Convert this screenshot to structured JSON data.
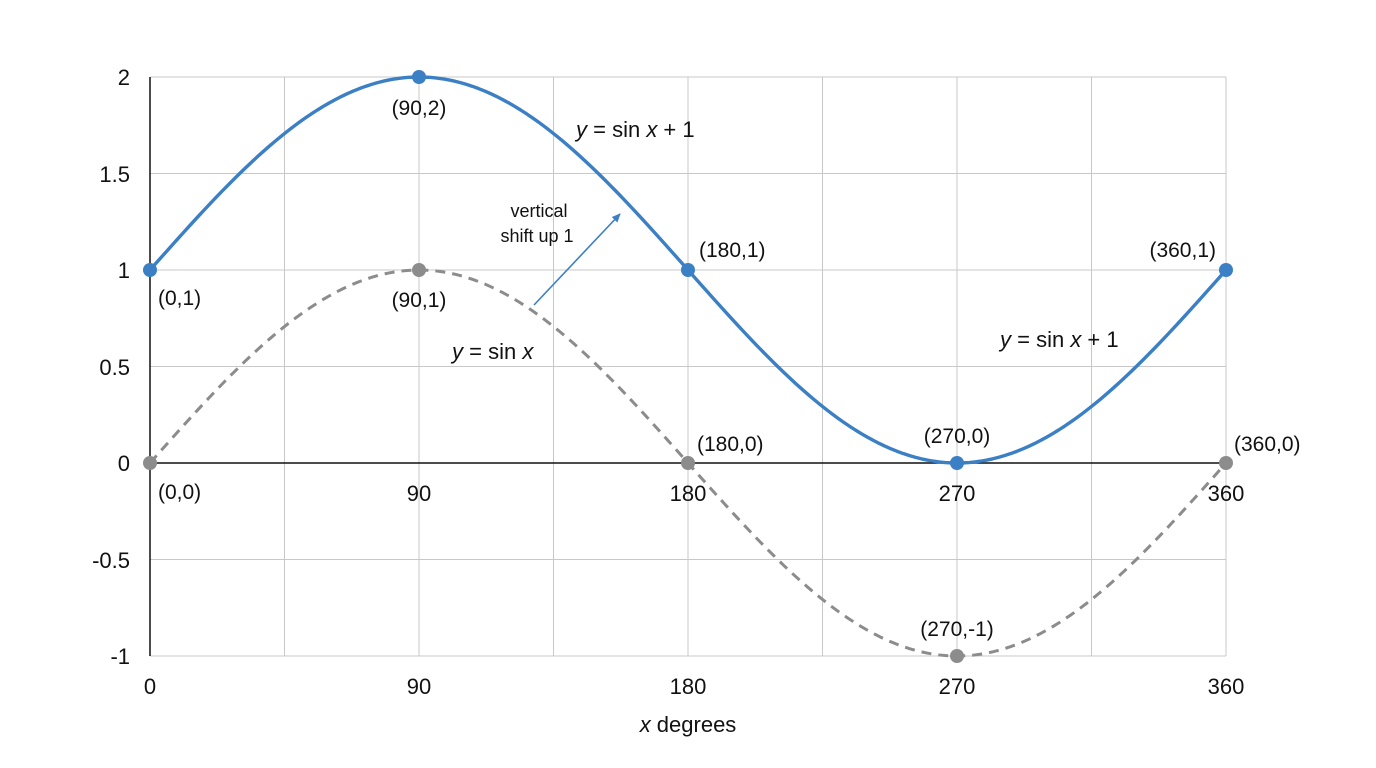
{
  "chart_data": {
    "type": "line",
    "xlabel": {
      "var": "x",
      "rest": " degrees"
    },
    "xlim": [
      0,
      360
    ],
    "ylim": [
      -1,
      2
    ],
    "x_ticks": [
      "0",
      "90",
      "180",
      "270",
      "360"
    ],
    "y_ticks": [
      "2",
      "1.5",
      "1",
      "0.5",
      "0",
      "-0.5",
      "-1"
    ],
    "zero_axis_ticks": [
      "90",
      "180",
      "270",
      "360"
    ],
    "grid": true,
    "colors": {
      "shifted": "#3b7fc4",
      "base": "#8c8c8c",
      "grid": "#c8c8c8"
    },
    "series": [
      {
        "style": "solid",
        "x": [
          0,
          90,
          180,
          270,
          360
        ],
        "y": [
          1,
          2,
          1,
          0,
          1
        ],
        "point_labels": [
          "(0,1)",
          "(90,2)",
          "(180,1)",
          "(270,0)",
          "(360,1)"
        ]
      },
      {
        "style": "dashed",
        "x": [
          0,
          90,
          180,
          270,
          360
        ],
        "y": [
          0,
          1,
          0,
          -1,
          0
        ],
        "point_labels": [
          "(0,0)",
          "(90,1)",
          "(180,0)",
          "(270,-1)",
          "(360,0)"
        ]
      }
    ],
    "equations": {
      "shifted_top": {
        "var": "y",
        "eq": " = sin ",
        "x": "x",
        "tail": " + 1"
      },
      "shifted_right": {
        "var": "y",
        "eq": " = sin ",
        "x": "x",
        "tail": " + 1"
      },
      "base": {
        "var": "y",
        "eq": " = sin ",
        "x": "x"
      }
    },
    "annotation": {
      "line1": "vertical",
      "line2": "shift up 1"
    }
  }
}
